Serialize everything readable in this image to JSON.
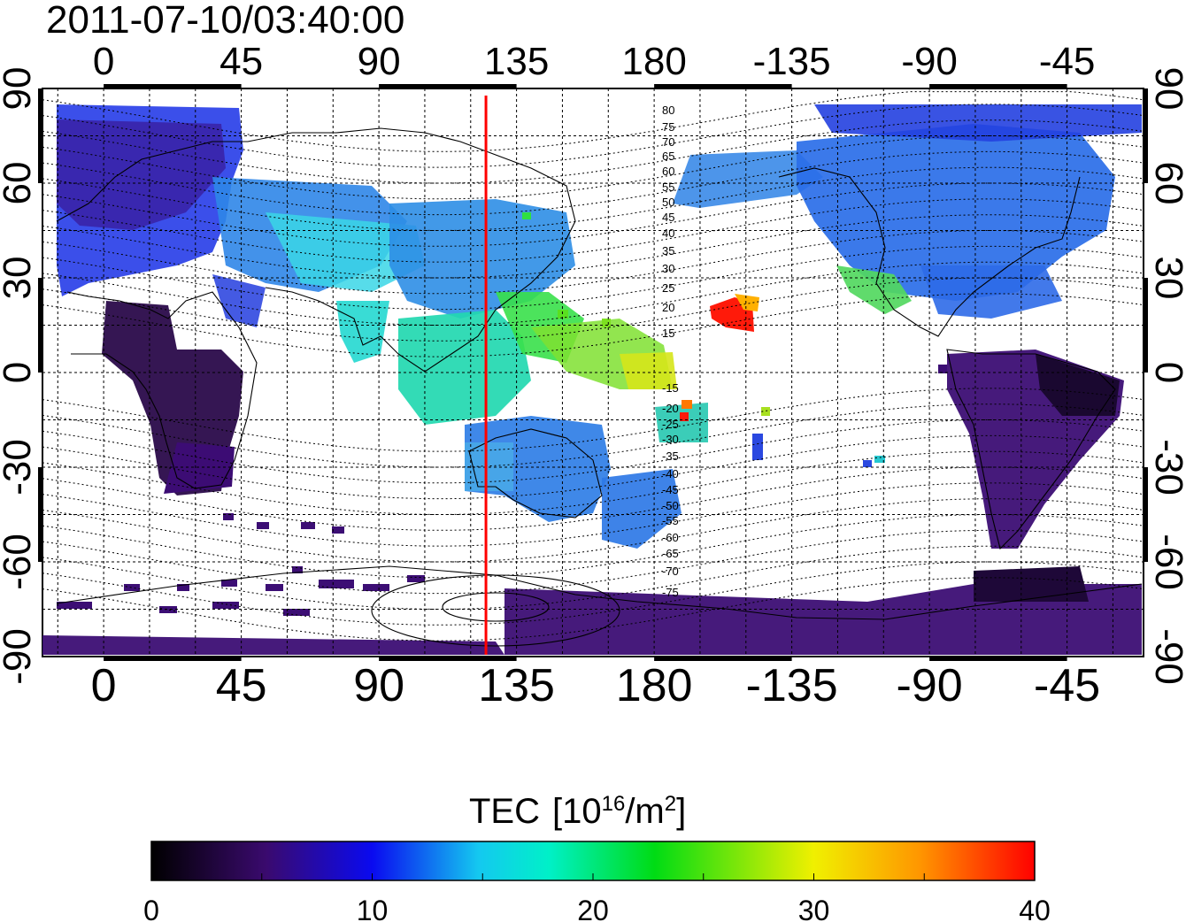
{
  "title": "2011-07-10/03:40:00",
  "map": {
    "lon_ticks_top": [
      "0",
      "45",
      "90",
      "135",
      "180",
      "-135",
      "-90",
      "-45"
    ],
    "lon_ticks_bottom": [
      "0",
      "45",
      "90",
      "135",
      "180",
      "-135",
      "-90",
      "-45"
    ],
    "lat_ticks_left": [
      "90",
      "60",
      "30",
      "0",
      "-30",
      "-60",
      "-90"
    ],
    "lat_ticks_right": [
      "90",
      "60",
      "30",
      "0",
      "-30",
      "-60",
      "-90"
    ],
    "lon_range": [
      -20,
      340
    ],
    "lat_range": [
      -90,
      90
    ],
    "marker_longitude": 125,
    "magnetic_labels": [
      "80",
      "75",
      "70",
      "65",
      "60",
      "55",
      "50",
      "45",
      "40",
      "35",
      "30",
      "25",
      "20",
      "15",
      "-15",
      "-20",
      "-25",
      "-30",
      "-35",
      "-40",
      "-45",
      "-50",
      "-55",
      "-60",
      "-65",
      "-70",
      "-75"
    ]
  },
  "colorbar": {
    "label": "TEC",
    "unit_prefix": "[10",
    "unit_exp": "16",
    "unit_suffix": "/m",
    "unit_sq": "2",
    "unit_close": "]",
    "ticks": [
      "0",
      "10",
      "20",
      "30",
      "40"
    ],
    "min": 0,
    "max": 40,
    "colors": [
      "#000000",
      "#3a0a6e",
      "#0a0af0",
      "#14c8f0",
      "#00f0c8",
      "#00dc14",
      "#f0f000",
      "#ff9600",
      "#ff0000"
    ]
  },
  "chart_data": {
    "type": "heatmap",
    "title": "2011-07-10/03:40:00",
    "quantity": "TEC [10^16/m^2]",
    "value_range": [
      0,
      40
    ],
    "regions": [
      {
        "lon_range": [
          -15,
          40
        ],
        "lat_range": [
          35,
          85
        ],
        "tec": 7
      },
      {
        "lon_range": [
          30,
          100
        ],
        "lat_range": [
          20,
          60
        ],
        "tec": 12
      },
      {
        "lon_range": [
          0,
          50
        ],
        "lat_range": [
          -35,
          15
        ],
        "tec": 2
      },
      {
        "lon_range": [
          90,
          150
        ],
        "lat_range": [
          -10,
          40
        ],
        "tec": 18
      },
      {
        "lon_range": [
          110,
          170
        ],
        "lat_range": [
          -45,
          -10
        ],
        "tec": 12
      },
      {
        "lon_range": [
          150,
          185
        ],
        "lat_range": [
          -10,
          15
        ],
        "tec": 24
      },
      {
        "lon_range": [
          -160,
          -150
        ],
        "lat_range": [
          15,
          25
        ],
        "tec": 37
      },
      {
        "lon_range": [
          -170,
          -90
        ],
        "lat_range": [
          45,
          75
        ],
        "tec": 10
      },
      {
        "lon_range": [
          -120,
          -60
        ],
        "lat_range": [
          15,
          55
        ],
        "tec": 11
      },
      {
        "lon_range": [
          -110,
          -95
        ],
        "lat_range": [
          15,
          30
        ],
        "tec": 21
      },
      {
        "lon_range": [
          -80,
          -35
        ],
        "lat_range": [
          -55,
          10
        ],
        "tec": 3
      },
      {
        "lon_range": [
          -20,
          340
        ],
        "lat_range": [
          -90,
          -70
        ],
        "tec": 4
      }
    ],
    "marker_longitude": 125
  }
}
